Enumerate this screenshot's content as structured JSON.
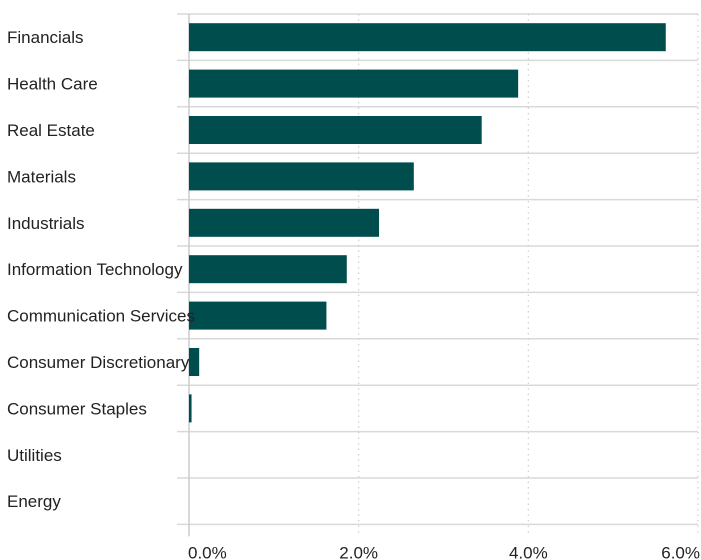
{
  "chart_data": {
    "type": "bar",
    "orientation": "horizontal",
    "categories": [
      "Financials",
      "Health Care",
      "Real Estate",
      "Materials",
      "Industrials",
      "Information Technology",
      "Communication Services",
      "Consumer Discretionary",
      "Consumer Staples",
      "Utilities",
      "Energy"
    ],
    "values": [
      5.62,
      3.88,
      3.45,
      2.65,
      2.24,
      1.86,
      1.62,
      0.12,
      0.03,
      0,
      0
    ],
    "xlim": [
      0,
      6
    ],
    "x_ticks": [
      0,
      2,
      4,
      6
    ],
    "x_tick_labels": [
      "0.0%",
      "2.0%",
      "4.0%",
      "6.0%"
    ],
    "bar_color": "#004d4d",
    "grid": true,
    "title": "",
    "xlabel": "",
    "ylabel": ""
  }
}
